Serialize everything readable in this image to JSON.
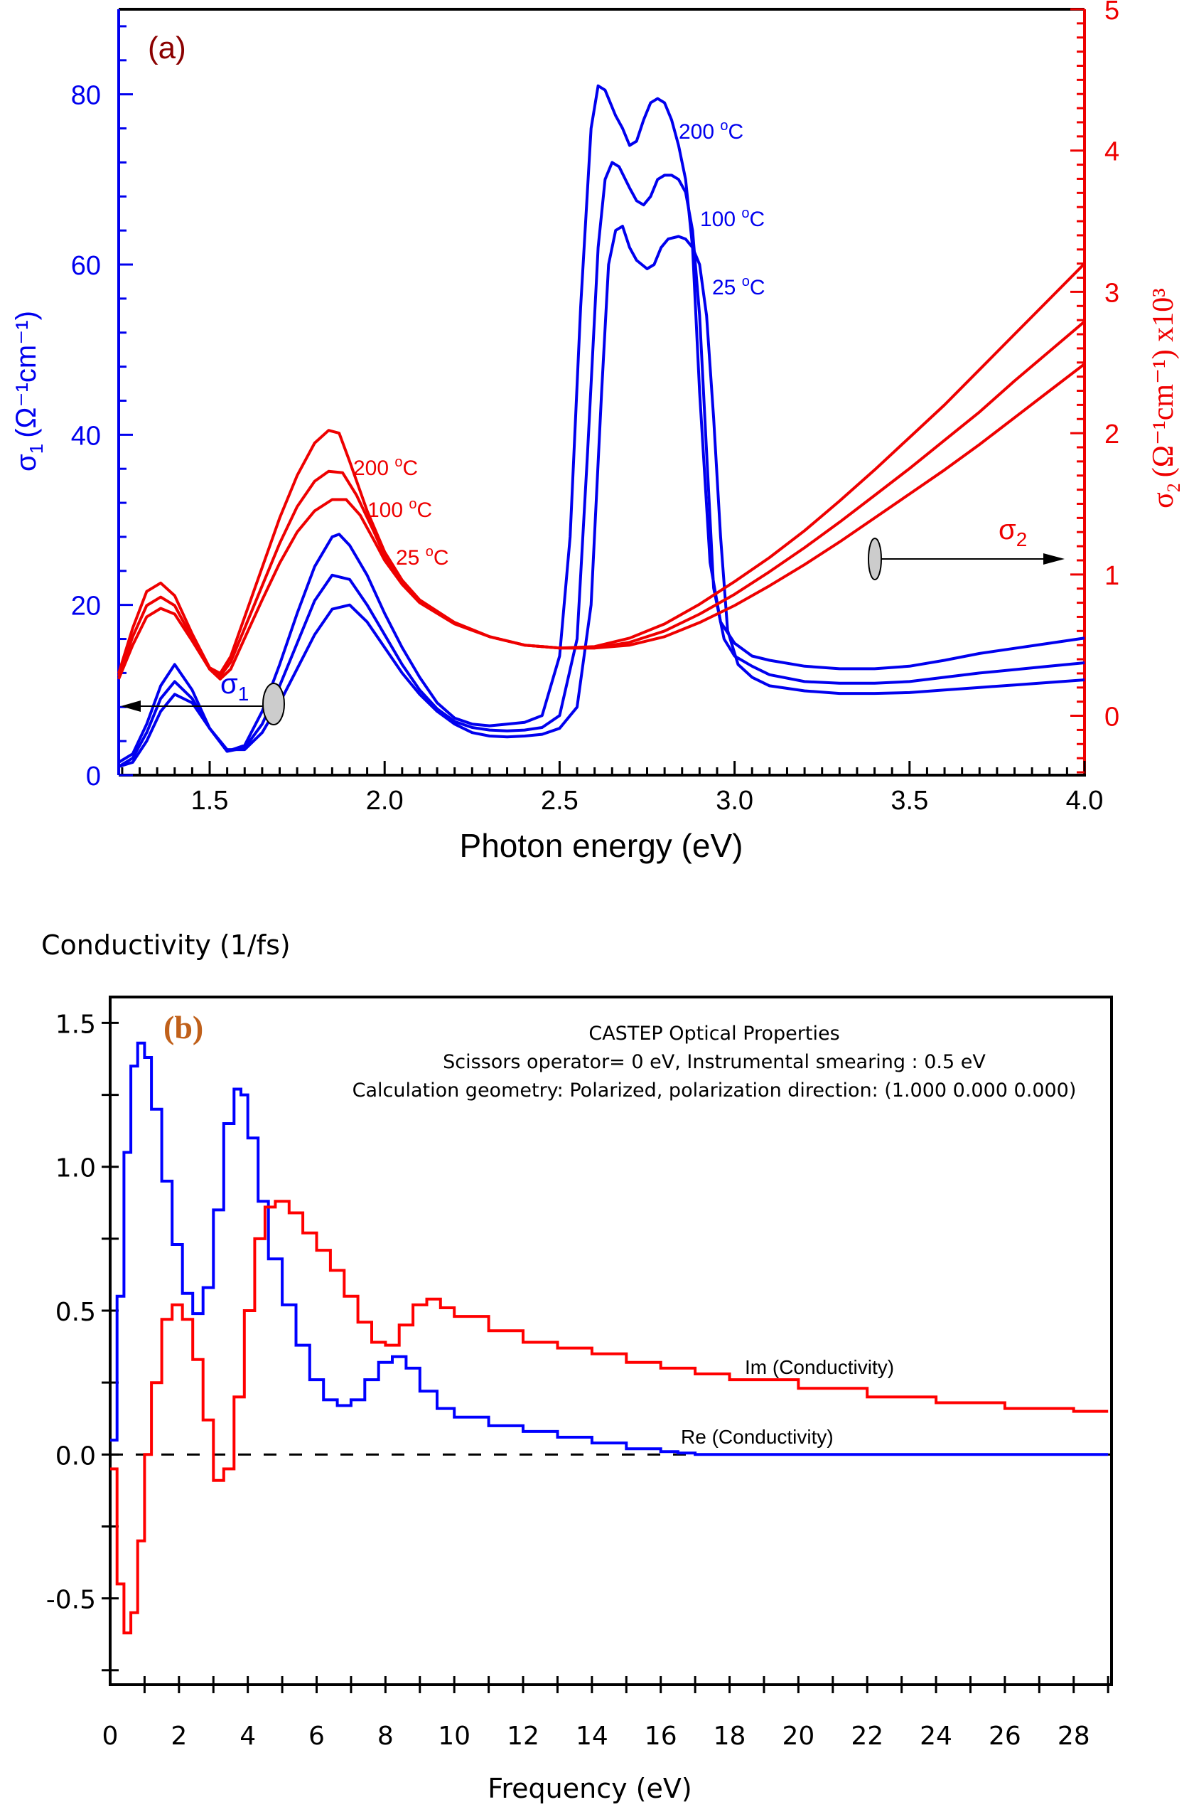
{
  "chart_data": [
    {
      "id": "a",
      "type": "line",
      "panel_label": "(a)",
      "xlabel": "Photon energy (eV)",
      "ylabel_left": {
        "symbol": "σ",
        "sub": "1",
        "units": "(Ω⁻¹cm⁻¹)"
      },
      "ylabel_right": {
        "symbol": "σ",
        "sub": "2",
        "units": "(Ω⁻¹cm⁻¹) x10³"
      },
      "xlim": [
        1.24,
        4.0
      ],
      "ylim_left": [
        0,
        90
      ],
      "ylim_right": [
        -0.42,
        5
      ],
      "xticks": [
        "1.5",
        "2.0",
        "2.5",
        "3.0",
        "3.5",
        "4.0"
      ],
      "xtick_values": [
        1.5,
        2.0,
        2.5,
        3.0,
        3.5,
        4.0
      ],
      "yticks_left": [
        "0",
        "20",
        "40",
        "60",
        "80"
      ],
      "ytick_values_left": [
        0,
        20,
        40,
        60,
        80
      ],
      "yticks_right": [
        "0",
        "1",
        "2",
        "3",
        "4",
        "5"
      ],
      "ytick_values_right": [
        0,
        1,
        2,
        3,
        4,
        5
      ],
      "colors": {
        "sigma1": "#0000ee",
        "sigma2": "#ee0000",
        "panel_label": "#8b0000"
      },
      "annotations": {
        "sigma1_marker": {
          "symbol": "σ",
          "sub": "1",
          "x": 1.68,
          "y": 8.5,
          "arrow_to": "left axis"
        },
        "sigma2_marker": {
          "symbol": "σ",
          "sub": "2",
          "x": 3.4,
          "y_right": 1.1,
          "arrow_to": "right axis"
        }
      },
      "series": [
        {
          "name": "σ1 200 °C",
          "label": "200 °C",
          "axis": "left",
          "color": "#0000ee",
          "x": [
            1.24,
            1.28,
            1.32,
            1.36,
            1.4,
            1.45,
            1.5,
            1.55,
            1.6,
            1.65,
            1.7,
            1.75,
            1.8,
            1.85,
            1.87,
            1.9,
            1.95,
            2.0,
            2.05,
            2.1,
            2.15,
            2.2,
            2.25,
            2.3,
            2.35,
            2.4,
            2.45,
            2.5,
            2.53,
            2.56,
            2.59,
            2.61,
            2.63,
            2.66,
            2.68,
            2.7,
            2.72,
            2.74,
            2.76,
            2.78,
            2.8,
            2.82,
            2.84,
            2.86,
            2.88,
            2.9,
            2.93,
            2.96,
            3.0,
            3.05,
            3.1,
            3.2,
            3.3,
            3.4,
            3.5,
            3.6,
            3.7,
            3.8,
            3.9,
            4.0
          ],
          "y": [
            1.5,
            2.5,
            6,
            10.5,
            13,
            10,
            5.5,
            2.8,
            3.5,
            7.5,
            13,
            19,
            24.5,
            28,
            28.3,
            27,
            23.5,
            19,
            15,
            11.5,
            8.5,
            6.7,
            6,
            5.8,
            6,
            6.2,
            7,
            14,
            28,
            55,
            76,
            81,
            80.5,
            77.5,
            76,
            74,
            74.5,
            77,
            79,
            79.5,
            79,
            77,
            74,
            70,
            62,
            45,
            25,
            18,
            15.5,
            14,
            13.5,
            12.8,
            12.5,
            12.5,
            12.8,
            13.5,
            14.3,
            14.9,
            15.5,
            16.1
          ]
        },
        {
          "name": "σ1 100 °C",
          "label": "100 °C",
          "axis": "left",
          "color": "#0000ee",
          "x": [
            1.24,
            1.28,
            1.32,
            1.36,
            1.4,
            1.45,
            1.5,
            1.55,
            1.6,
            1.65,
            1.7,
            1.75,
            1.8,
            1.85,
            1.9,
            1.95,
            2.0,
            2.05,
            2.1,
            2.15,
            2.2,
            2.25,
            2.3,
            2.35,
            2.4,
            2.45,
            2.5,
            2.55,
            2.58,
            2.61,
            2.63,
            2.65,
            2.67,
            2.7,
            2.72,
            2.74,
            2.76,
            2.78,
            2.8,
            2.82,
            2.84,
            2.86,
            2.88,
            2.9,
            2.92,
            2.94,
            2.97,
            3.0,
            3.05,
            3.1,
            3.2,
            3.3,
            3.4,
            3.5,
            3.6,
            3.7,
            3.8,
            3.9,
            4.0
          ],
          "y": [
            1,
            2,
            5,
            9,
            11,
            9,
            5.5,
            2.8,
            3.2,
            6,
            10.5,
            15.5,
            20.5,
            23.5,
            23,
            20,
            16.5,
            13,
            10,
            7.8,
            6.3,
            5.6,
            5.3,
            5.2,
            5.3,
            5.6,
            7,
            16,
            38,
            62,
            70,
            72,
            71.5,
            69,
            67.5,
            67,
            68,
            70,
            70.5,
            70.5,
            70,
            68.5,
            64,
            54,
            38,
            22,
            16,
            14,
            12.8,
            11.8,
            11,
            10.8,
            10.8,
            11,
            11.5,
            12,
            12.4,
            12.8,
            13.2
          ]
        },
        {
          "name": "σ1 25 °C",
          "label": "25 °C",
          "axis": "left",
          "color": "#0000ee",
          "x": [
            1.24,
            1.28,
            1.32,
            1.36,
            1.4,
            1.45,
            1.5,
            1.55,
            1.6,
            1.65,
            1.7,
            1.75,
            1.8,
            1.85,
            1.9,
            1.95,
            2.0,
            2.05,
            2.1,
            2.15,
            2.2,
            2.25,
            2.3,
            2.35,
            2.4,
            2.45,
            2.5,
            2.55,
            2.59,
            2.62,
            2.64,
            2.66,
            2.68,
            2.7,
            2.72,
            2.75,
            2.77,
            2.79,
            2.81,
            2.84,
            2.86,
            2.88,
            2.9,
            2.92,
            2.94,
            2.96,
            2.98,
            3.01,
            3.05,
            3.1,
            3.2,
            3.3,
            3.4,
            3.5,
            3.6,
            3.7,
            3.8,
            3.9,
            4.0
          ],
          "y": [
            1,
            1.5,
            4,
            7.5,
            9.5,
            8.5,
            5.5,
            3,
            3,
            5,
            8.5,
            12.5,
            16.5,
            19.5,
            20,
            18,
            15,
            12,
            9.5,
            7.5,
            6,
            5,
            4.6,
            4.5,
            4.6,
            4.8,
            5.5,
            8,
            20,
            45,
            60,
            64,
            64.5,
            62,
            60.5,
            59.5,
            60,
            62,
            63,
            63.3,
            63,
            62,
            60,
            54,
            42,
            28,
            17,
            13,
            11.5,
            10.5,
            9.9,
            9.6,
            9.6,
            9.7,
            10,
            10.3,
            10.6,
            10.9,
            11.2
          ]
        },
        {
          "name": "σ2 200 °C",
          "label": "200 °C",
          "axis": "right",
          "color": "#ee0000",
          "x": [
            1.24,
            1.28,
            1.32,
            1.36,
            1.4,
            1.45,
            1.5,
            1.53,
            1.56,
            1.6,
            1.65,
            1.7,
            1.75,
            1.8,
            1.84,
            1.87,
            1.9,
            1.95,
            2.0,
            2.05,
            2.1,
            2.2,
            2.3,
            2.4,
            2.5,
            2.6,
            2.7,
            2.8,
            2.9,
            3.0,
            3.1,
            3.2,
            3.3,
            3.4,
            3.5,
            3.6,
            3.7,
            3.8,
            3.9,
            4.0
          ],
          "y": [
            0.3,
            0.62,
            0.88,
            0.94,
            0.85,
            0.58,
            0.34,
            0.3,
            0.42,
            0.7,
            1.05,
            1.4,
            1.7,
            1.93,
            2.02,
            2.0,
            1.8,
            1.45,
            1.16,
            0.96,
            0.82,
            0.66,
            0.56,
            0.5,
            0.48,
            0.49,
            0.55,
            0.65,
            0.79,
            0.95,
            1.12,
            1.31,
            1.52,
            1.74,
            1.97,
            2.2,
            2.45,
            2.7,
            2.95,
            3.2
          ]
        },
        {
          "name": "σ2 100 °C",
          "label": "100 °C",
          "axis": "right",
          "color": "#ee0000",
          "x": [
            1.24,
            1.28,
            1.32,
            1.36,
            1.4,
            1.45,
            1.5,
            1.53,
            1.56,
            1.6,
            1.65,
            1.7,
            1.75,
            1.8,
            1.84,
            1.88,
            1.92,
            1.97,
            2.0,
            2.05,
            2.1,
            2.2,
            2.3,
            2.4,
            2.5,
            2.6,
            2.7,
            2.8,
            2.9,
            3.0,
            3.1,
            3.2,
            3.3,
            3.4,
            3.5,
            3.6,
            3.7,
            3.8,
            3.9,
            4.0
          ],
          "y": [
            0.28,
            0.56,
            0.78,
            0.84,
            0.78,
            0.55,
            0.33,
            0.28,
            0.38,
            0.62,
            0.92,
            1.22,
            1.48,
            1.66,
            1.73,
            1.72,
            1.56,
            1.3,
            1.13,
            0.95,
            0.81,
            0.66,
            0.56,
            0.5,
            0.48,
            0.48,
            0.52,
            0.6,
            0.72,
            0.86,
            1.02,
            1.19,
            1.37,
            1.56,
            1.75,
            1.95,
            2.15,
            2.37,
            2.58,
            2.79
          ]
        },
        {
          "name": "σ2 25 °C",
          "label": "25 °C",
          "axis": "right",
          "color": "#ee0000",
          "x": [
            1.24,
            1.28,
            1.32,
            1.36,
            1.4,
            1.45,
            1.5,
            1.53,
            1.56,
            1.6,
            1.65,
            1.7,
            1.75,
            1.8,
            1.85,
            1.89,
            1.93,
            1.97,
            2.0,
            2.05,
            2.1,
            2.2,
            2.3,
            2.4,
            2.5,
            2.6,
            2.7,
            2.8,
            2.9,
            3.0,
            3.1,
            3.2,
            3.3,
            3.4,
            3.5,
            3.6,
            3.7,
            3.8,
            3.9,
            4.0
          ],
          "y": [
            0.26,
            0.5,
            0.7,
            0.76,
            0.72,
            0.53,
            0.33,
            0.26,
            0.33,
            0.55,
            0.82,
            1.08,
            1.3,
            1.45,
            1.53,
            1.53,
            1.42,
            1.24,
            1.1,
            0.93,
            0.8,
            0.65,
            0.56,
            0.5,
            0.48,
            0.48,
            0.5,
            0.56,
            0.66,
            0.78,
            0.92,
            1.07,
            1.23,
            1.4,
            1.57,
            1.74,
            1.92,
            2.11,
            2.3,
            2.49
          ]
        }
      ]
    },
    {
      "id": "b",
      "type": "line",
      "panel_label": "(b)",
      "ytitle": "Conductivity (1/fs)",
      "xlabel": "Frequency (eV)",
      "title_lines": [
        "CASTEP Optical Properties",
        "Scissors operator= 0 eV, Instrumental smearing : 0.5 eV",
        "Calculation geometry: Polarized, polarization direction: (1.000 0.000 0.000)"
      ],
      "xlim": [
        0,
        29.1
      ],
      "ylim": [
        -0.8,
        1.59
      ],
      "xticks": [
        "0",
        "2",
        "4",
        "6",
        "8",
        "10",
        "12",
        "14",
        "16",
        "18",
        "20",
        "22",
        "24",
        "26",
        "28"
      ],
      "xtick_values": [
        0,
        2,
        4,
        6,
        8,
        10,
        12,
        14,
        16,
        18,
        20,
        22,
        24,
        26,
        28
      ],
      "yticks": [
        "-0.5",
        "0.0",
        "0.5",
        "1.0",
        "1.5"
      ],
      "ytick_values": [
        -0.5,
        0.0,
        0.5,
        1.0,
        1.5
      ],
      "zero_line": "dashed",
      "colors": {
        "re": "#0000ff",
        "im": "#ff0000",
        "panel_label": "#c0601a"
      },
      "series": [
        {
          "name": "Re (Conductivity)",
          "label": "Re (Conductivity)",
          "color": "#0000ff",
          "x": [
            0,
            0.2,
            0.4,
            0.6,
            0.8,
            1.0,
            1.2,
            1.5,
            1.8,
            2.1,
            2.4,
            2.7,
            3.0,
            3.3,
            3.6,
            3.8,
            4.0,
            4.3,
            4.6,
            5.0,
            5.4,
            5.8,
            6.2,
            6.6,
            7.0,
            7.4,
            7.8,
            8.2,
            8.6,
            9.0,
            9.5,
            10,
            11,
            12,
            13,
            14,
            15,
            16,
            16.5,
            17,
            20,
            24,
            29
          ],
          "y": [
            0.05,
            0.55,
            1.05,
            1.35,
            1.43,
            1.38,
            1.2,
            0.95,
            0.73,
            0.56,
            0.49,
            0.58,
            0.85,
            1.15,
            1.27,
            1.25,
            1.1,
            0.88,
            0.68,
            0.52,
            0.38,
            0.26,
            0.19,
            0.17,
            0.19,
            0.26,
            0.32,
            0.34,
            0.3,
            0.22,
            0.16,
            0.13,
            0.1,
            0.08,
            0.06,
            0.04,
            0.02,
            0.01,
            0.005,
            0,
            0,
            0,
            0
          ]
        },
        {
          "name": "Im (Conductivity)",
          "label": "Im (Conductivity)",
          "color": "#ff0000",
          "x": [
            0,
            0.2,
            0.4,
            0.6,
            0.8,
            1.0,
            1.2,
            1.5,
            1.8,
            2.1,
            2.4,
            2.7,
            3.0,
            3.3,
            3.6,
            3.9,
            4.2,
            4.5,
            4.8,
            5.2,
            5.6,
            6.0,
            6.4,
            6.8,
            7.2,
            7.6,
            8.0,
            8.4,
            8.8,
            9.2,
            9.6,
            10,
            11,
            12,
            13,
            14,
            15,
            16,
            17,
            18,
            20,
            22,
            24,
            26,
            28,
            29
          ],
          "y": [
            -0.05,
            -0.45,
            -0.62,
            -0.55,
            -0.3,
            0.0,
            0.25,
            0.47,
            0.52,
            0.47,
            0.33,
            0.12,
            -0.09,
            -0.05,
            0.2,
            0.5,
            0.75,
            0.86,
            0.88,
            0.84,
            0.77,
            0.71,
            0.64,
            0.55,
            0.46,
            0.39,
            0.38,
            0.45,
            0.52,
            0.54,
            0.51,
            0.48,
            0.43,
            0.39,
            0.37,
            0.35,
            0.32,
            0.3,
            0.28,
            0.26,
            0.23,
            0.2,
            0.18,
            0.16,
            0.15,
            0.15
          ]
        }
      ]
    }
  ]
}
